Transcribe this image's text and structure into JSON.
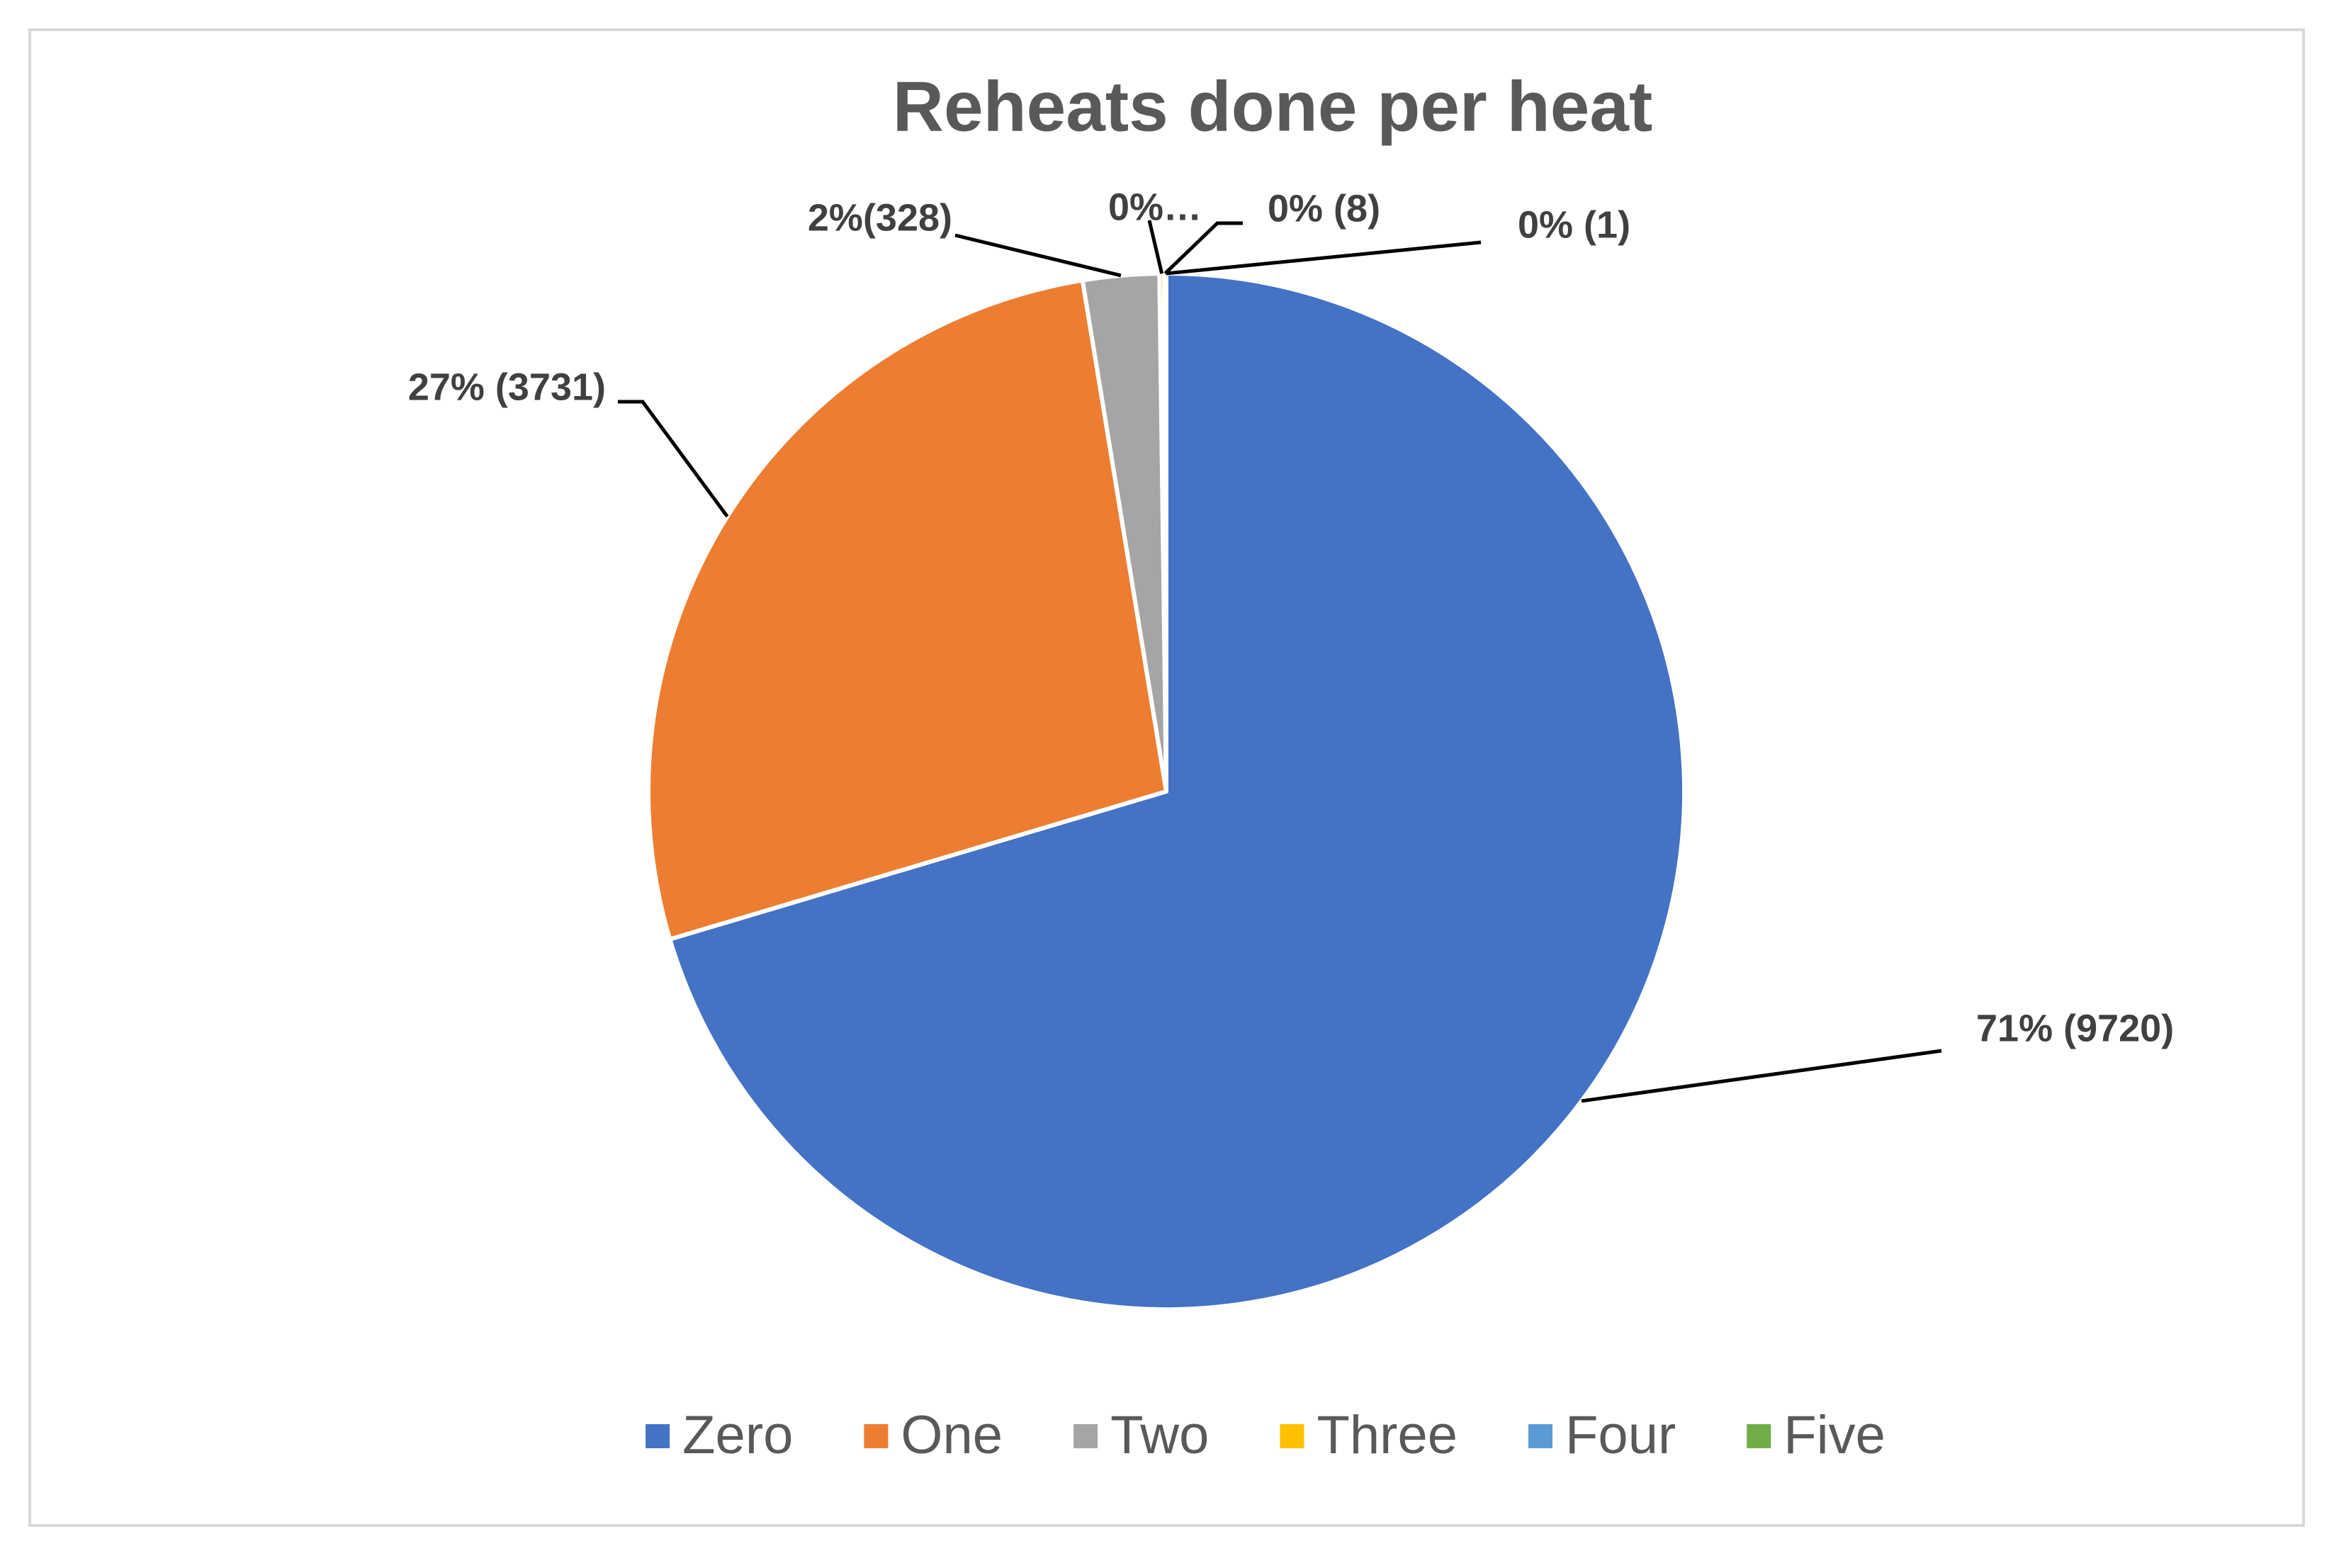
{
  "chart_data": {
    "type": "pie",
    "title": "Reheats done per heat",
    "categories": [
      "Zero",
      "One",
      "Two",
      "Three",
      "Four",
      "Five"
    ],
    "values": [
      9720,
      3731,
      328,
      20,
      8,
      1
    ],
    "value_labels": [
      "71% (9720)",
      "27% (3731)",
      "2%(328)",
      "0%…",
      "0% (8)",
      "0% (1)"
    ],
    "colors": [
      "#4472c4",
      "#ed7d31",
      "#a5a5a5",
      "#ffc000",
      "#5b9bd5",
      "#70ad47"
    ],
    "legend": "bottom"
  }
}
